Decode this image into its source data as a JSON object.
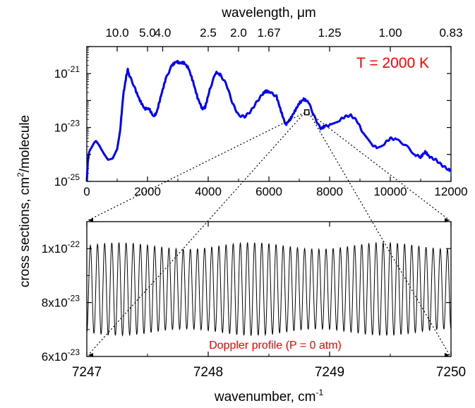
{
  "chart_data": [
    {
      "type": "line",
      "panel": "top",
      "annotation": "T = 2000 K",
      "annotation_color": "#ff0000",
      "series_color": "#0000ff",
      "xlim": [
        0,
        12000
      ],
      "ylim_log10": [
        -25,
        -20
      ],
      "y_scale": "log",
      "x_ticks": [
        {
          "value": 0,
          "label": "0"
        },
        {
          "value": 2000,
          "label": "2000"
        },
        {
          "value": 4000,
          "label": "4000"
        },
        {
          "value": 6000,
          "label": "6000"
        },
        {
          "value": 8000,
          "label": "8000"
        },
        {
          "value": 10000,
          "label": "10000"
        },
        {
          "value": 12000,
          "label": "12000"
        }
      ],
      "y_ticks": [
        {
          "exp": -21,
          "base": "10",
          "sup": "-21"
        },
        {
          "exp": -23,
          "base": "10",
          "sup": "-23"
        },
        {
          "exp": -25,
          "base": "10",
          "sup": "-25"
        }
      ],
      "top_axis": {
        "label": "wavelength, μm",
        "ticks": [
          {
            "value": 1000,
            "label": "10.0"
          },
          {
            "value": 2000,
            "label": "5.0"
          },
          {
            "value": 2500,
            "label": "4.0"
          },
          {
            "value": 4000,
            "label": "2.5"
          },
          {
            "value": 5000,
            "label": "2.0"
          },
          {
            "value": 6000,
            "label": "1.67"
          },
          {
            "value": 8000,
            "label": "1.25"
          },
          {
            "value": 10000,
            "label": "1.00"
          },
          {
            "value": 12000,
            "label": "0.83"
          }
        ]
      },
      "marker": {
        "x": 7248.5,
        "y_log10": -22.45
      },
      "points": [
        [
          0,
          -25.0
        ],
        [
          30,
          -24.3
        ],
        [
          80,
          -23.9
        ],
        [
          150,
          -23.75
        ],
        [
          250,
          -23.55
        ],
        [
          300,
          -23.5
        ],
        [
          400,
          -23.65
        ],
        [
          550,
          -23.95
        ],
        [
          700,
          -24.2
        ],
        [
          850,
          -24.15
        ],
        [
          1000,
          -23.8
        ],
        [
          1100,
          -23.1
        ],
        [
          1200,
          -21.8
        ],
        [
          1300,
          -21.1
        ],
        [
          1350,
          -20.85
        ],
        [
          1400,
          -21.1
        ],
        [
          1480,
          -21.25
        ],
        [
          1600,
          -21.6
        ],
        [
          1750,
          -22.0
        ],
        [
          1900,
          -22.3
        ],
        [
          2050,
          -22.3
        ],
        [
          2200,
          -22.6
        ],
        [
          2300,
          -22.45
        ],
        [
          2450,
          -21.8
        ],
        [
          2600,
          -21.2
        ],
        [
          2800,
          -20.7
        ],
        [
          2950,
          -20.55
        ],
        [
          3050,
          -20.6
        ],
        [
          3200,
          -20.6
        ],
        [
          3350,
          -20.8
        ],
        [
          3500,
          -21.3
        ],
        [
          3650,
          -21.9
        ],
        [
          3800,
          -22.3
        ],
        [
          3900,
          -22.25
        ],
        [
          4050,
          -21.6
        ],
        [
          4250,
          -20.95
        ],
        [
          4400,
          -21.05
        ],
        [
          4600,
          -21.4
        ],
        [
          4800,
          -22.1
        ],
        [
          5000,
          -22.55
        ],
        [
          5200,
          -22.6
        ],
        [
          5400,
          -22.4
        ],
        [
          5600,
          -22.05
        ],
        [
          5800,
          -21.75
        ],
        [
          5900,
          -21.65
        ],
        [
          6050,
          -21.7
        ],
        [
          6250,
          -21.85
        ],
        [
          6400,
          -22.4
        ],
        [
          6550,
          -22.9
        ],
        [
          6700,
          -22.7
        ],
        [
          6850,
          -22.4
        ],
        [
          7000,
          -22.1
        ],
        [
          7150,
          -21.95
        ],
        [
          7300,
          -22.05
        ],
        [
          7500,
          -22.6
        ],
        [
          7700,
          -23.05
        ],
        [
          7850,
          -22.95
        ],
        [
          8050,
          -22.9
        ],
        [
          8300,
          -22.75
        ],
        [
          8500,
          -22.6
        ],
        [
          8700,
          -22.55
        ],
        [
          8900,
          -22.75
        ],
        [
          9100,
          -23.2
        ],
        [
          9350,
          -23.6
        ],
        [
          9550,
          -23.75
        ],
        [
          9800,
          -23.6
        ],
        [
          10000,
          -23.4
        ],
        [
          10200,
          -23.45
        ],
        [
          10500,
          -23.65
        ],
        [
          10800,
          -24.0
        ],
        [
          11000,
          -24.1
        ],
        [
          11150,
          -23.9
        ],
        [
          11300,
          -24.1
        ],
        [
          11500,
          -24.2
        ],
        [
          11700,
          -24.4
        ],
        [
          11900,
          -24.55
        ],
        [
          12000,
          -24.6
        ]
      ]
    },
    {
      "type": "line",
      "panel": "bottom",
      "annotation": "Doppler profile (P = 0 atm)",
      "annotation_color": "#ff0000",
      "series_color": "#000000",
      "xlim": [
        7247,
        7250
      ],
      "ylim": [
        6e-23,
        1.1e-22
      ],
      "x_ticks": [
        {
          "value": 7247,
          "label": "7247"
        },
        {
          "value": 7248,
          "label": "7248"
        },
        {
          "value": 7249,
          "label": "7249"
        },
        {
          "value": 7250,
          "label": "7250"
        }
      ],
      "y_ticks": [
        {
          "value": 1e-22,
          "base": "1x10",
          "sup": "-22"
        },
        {
          "value": 8e-23,
          "base": "8x10",
          "sup": "-23"
        },
        {
          "value": 6e-23,
          "base": "6x10",
          "sup": "-23"
        }
      ],
      "xlabel": "wavenumber, cm",
      "xlabel_sup": "-1",
      "oscillation": {
        "cycles": 51,
        "min": 6.75e-23,
        "max": 1.025e-22
      }
    }
  ],
  "shared_ylabel": {
    "text": "cross sections, cm",
    "sup": "2",
    "suffix": "/molecule"
  }
}
